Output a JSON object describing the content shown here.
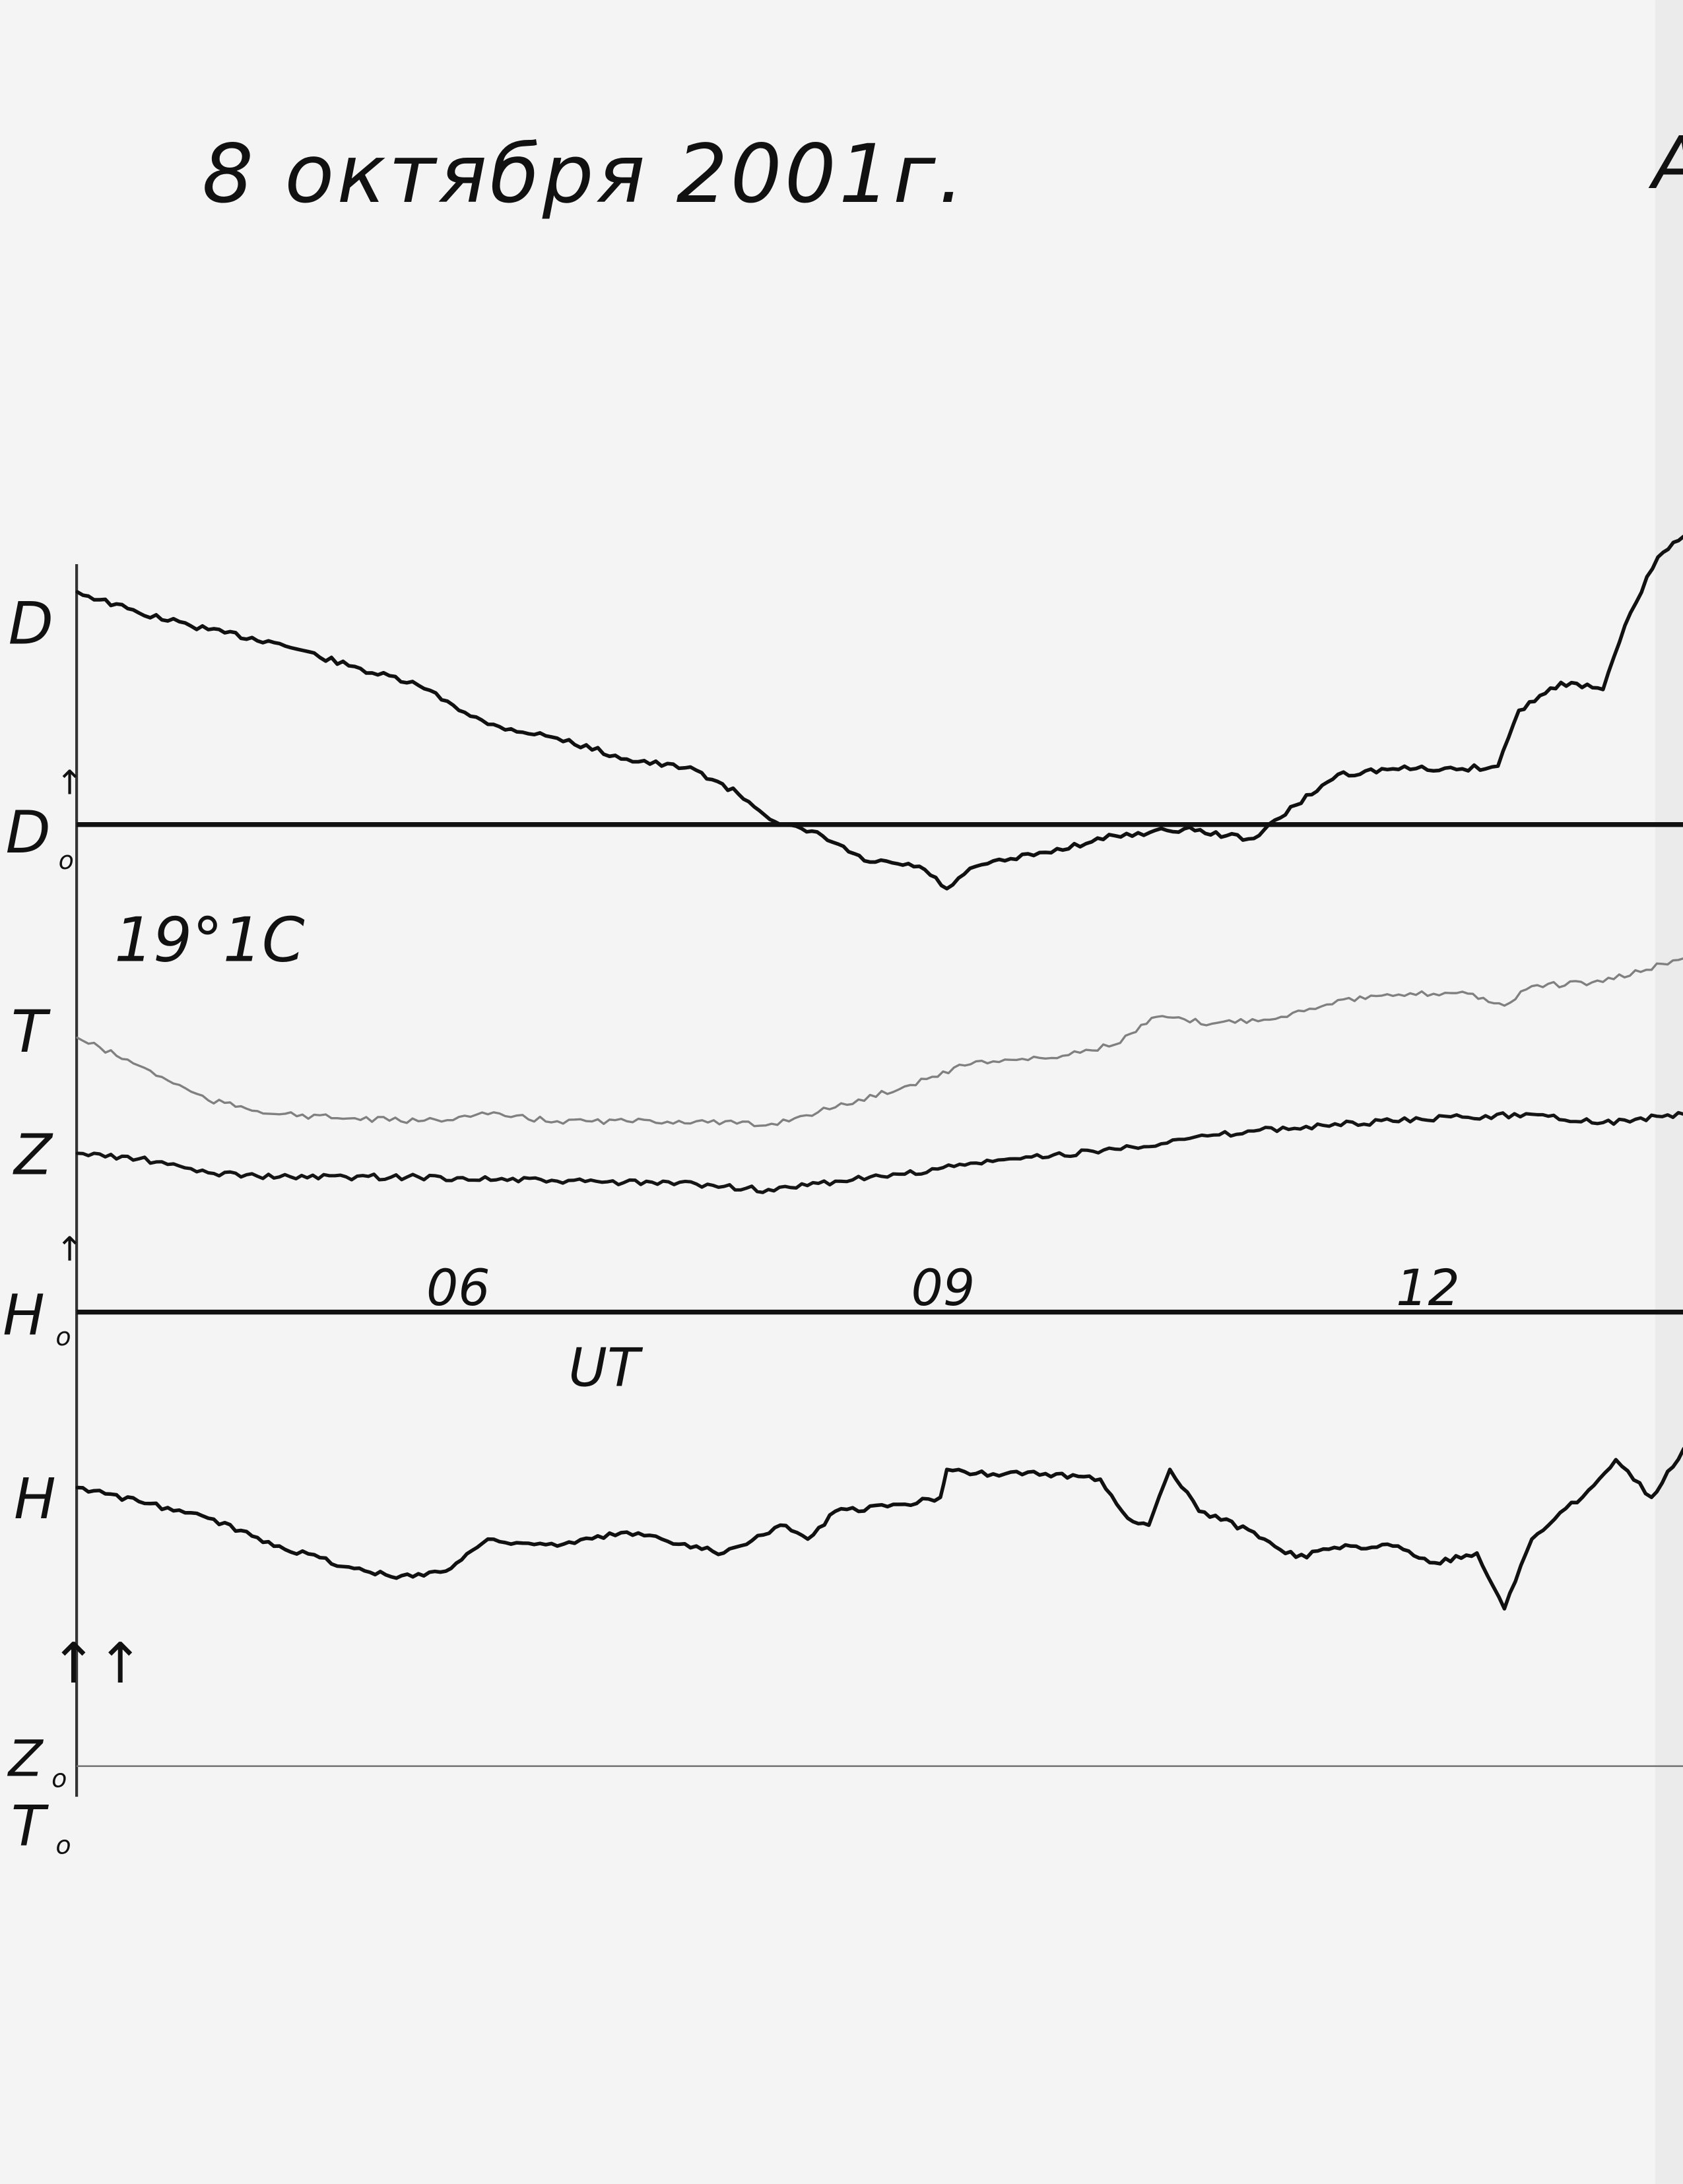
{
  "title": "8 октября 2001г.",
  "page_letter": "A",
  "temperature": "19°1C",
  "labels": {
    "D": "D",
    "D0": "D",
    "D0_sub": "o",
    "T": "T",
    "Z": "Z",
    "H0": "H",
    "H0_sub": "o",
    "H": "H",
    "arrows": "↑↑",
    "Z0": "Z",
    "Z0_sub": "o",
    "T0": "T",
    "T0_sub": "o"
  },
  "chart_data": {
    "type": "line",
    "title": "8 октября 2001г.",
    "xlabel": "UT",
    "x_ticks": [
      {
        "value": 6,
        "label": "06"
      },
      {
        "value": 9,
        "label": "09"
      },
      {
        "value": 12,
        "label": "12"
      }
    ],
    "xlim": [
      3.72,
      13.66
    ],
    "grid": false,
    "baselines": [
      "D0",
      "H0",
      "Z0/T0"
    ],
    "colors": {
      "D": "#111111",
      "T": "#808080",
      "Z": "#151515",
      "H": "#111111"
    },
    "series": [
      {
        "name": "D",
        "baseline": "D0",
        "x": [
          3.72,
          4.1,
          4.53,
          4.97,
          5.4,
          5.83,
          6.26,
          6.69,
          7.12,
          7.55,
          7.81,
          8.07,
          8.33,
          8.59,
          8.93,
          9.1,
          9.28,
          9.71,
          10.14,
          10.57,
          10.83,
          11.0,
          11.26,
          11.52,
          11.86,
          12.29,
          12.51,
          12.64,
          12.9,
          13.16,
          13.33,
          13.5,
          13.66
        ],
        "y": [
          167,
          152,
          140,
          130,
          114,
          100,
          72,
          62,
          47,
          39,
          22,
          0,
          -8,
          -26,
          -30,
          -46,
          -30,
          -20,
          -8,
          -3,
          -8,
          -10,
          14,
          36,
          40,
          40,
          42,
          82,
          102,
          97,
          152,
          192,
          207
        ]
      },
      {
        "name": "T",
        "baseline": "Z0/T0",
        "x": [
          3.72,
          4.1,
          4.53,
          4.97,
          5.4,
          5.83,
          6.26,
          6.69,
          7.12,
          7.55,
          7.98,
          8.41,
          8.84,
          9.28,
          9.71,
          10.14,
          10.4,
          10.74,
          11.17,
          11.52,
          11.86,
          12.29,
          12.55,
          12.72,
          13.16,
          13.66
        ],
        "y": [
          523,
          503,
          478,
          468,
          465,
          463,
          468,
          463,
          463,
          463,
          460,
          473,
          488,
          506,
          508,
          518,
          538,
          533,
          538,
          550,
          553,
          556,
          546,
          560,
          563,
          580
        ]
      },
      {
        "name": "Z",
        "baseline": "Z0/T0",
        "x": [
          3.72,
          4.1,
          4.53,
          4.97,
          5.83,
          6.69,
          7.55,
          8.03,
          8.41,
          8.84,
          9.28,
          10.14,
          10.57,
          11.0,
          11.43,
          11.86,
          12.29,
          12.72,
          13.16,
          13.66
        ],
        "y": [
          440,
          436,
          426,
          423,
          423,
          420,
          418,
          413,
          420,
          425,
          433,
          443,
          450,
          456,
          460,
          463,
          466,
          468,
          462,
          468
        ]
      },
      {
        "name": "H",
        "baseline": "H0",
        "x": [
          3.72,
          4.1,
          4.53,
          4.97,
          5.4,
          5.66,
          6.0,
          6.26,
          6.69,
          7.12,
          7.55,
          7.72,
          8.07,
          8.24,
          8.41,
          8.84,
          9.06,
          9.1,
          9.28,
          9.71,
          10.05,
          10.22,
          10.35,
          10.48,
          10.66,
          11.0,
          11.26,
          11.6,
          11.86,
          12.12,
          12.38,
          12.55,
          12.72,
          13.07,
          13.24,
          13.46,
          13.66
        ],
        "y": [
          -126,
          -136,
          -148,
          -168,
          -183,
          -190,
          -186,
          -163,
          -168,
          -158,
          -168,
          -173,
          -153,
          -163,
          -143,
          -138,
          -133,
          -113,
          -116,
          -116,
          -120,
          -148,
          -153,
          -113,
          -143,
          -158,
          -176,
          -168,
          -168,
          -180,
          -173,
          -213,
          -163,
          -128,
          -106,
          -133,
          -98
        ]
      }
    ]
  }
}
